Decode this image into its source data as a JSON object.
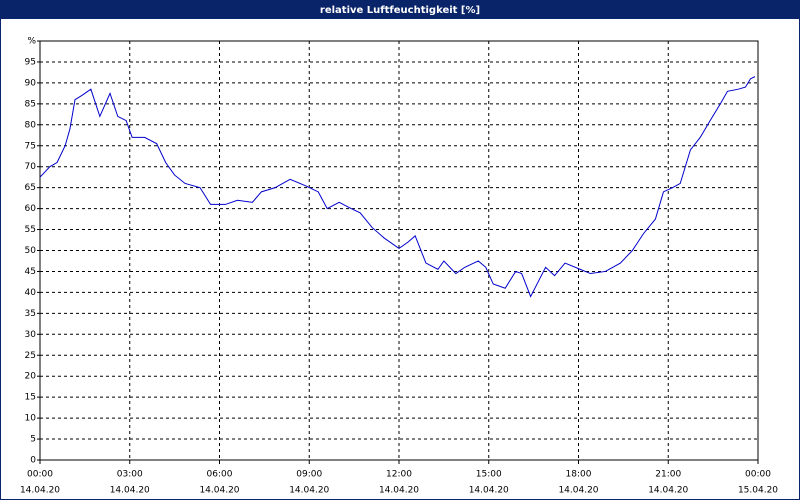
{
  "chart_data": {
    "type": "line",
    "title": "relative Luftfeuchtigkeit [%]",
    "x": [
      0,
      0.33,
      0.57,
      0.84,
      1.0,
      1.17,
      1.4,
      1.7,
      2.0,
      2.34,
      2.6,
      2.88,
      3.08,
      3.5,
      3.9,
      4.2,
      4.5,
      4.85,
      5.35,
      5.7,
      6.2,
      6.6,
      7.1,
      7.4,
      7.86,
      8.36,
      8.86,
      9.3,
      9.6,
      10.0,
      10.4,
      10.7,
      11.1,
      11.5,
      12.0,
      12.3,
      12.54,
      12.9,
      13.3,
      13.5,
      13.9,
      14.2,
      14.65,
      14.9,
      15.15,
      15.55,
      15.9,
      16.1,
      16.4,
      16.9,
      17.2,
      17.55,
      18.06,
      18.4,
      18.9,
      19.4,
      19.8,
      20.17,
      20.57,
      20.84,
      21.14,
      21.4,
      21.74,
      22.07,
      22.4,
      22.74,
      22.98,
      23.34,
      23.58,
      23.75,
      23.9
    ],
    "series": [
      {
        "color": "#0000cc",
        "values": [
          67.5,
          70,
          71,
          75,
          79,
          86,
          87,
          88.5,
          82,
          87.5,
          82,
          81,
          77,
          77,
          75.5,
          71,
          68,
          66,
          65,
          61,
          61,
          62,
          61.5,
          64,
          65,
          67,
          65.5,
          64,
          60,
          61.5,
          60,
          59,
          55.5,
          53,
          50.5,
          52,
          53.5,
          47,
          45.5,
          47.5,
          44.5,
          46,
          47.5,
          46,
          42,
          41,
          45,
          44.5,
          39,
          46,
          44,
          47,
          45.5,
          44.5,
          45,
          47,
          50,
          54,
          57.5,
          64,
          65,
          66,
          74,
          77,
          81,
          85,
          88,
          88.5,
          89,
          91,
          91.5
        ]
      }
    ],
    "xlim": [
      0,
      24
    ],
    "xticks": [
      {
        "value": 0,
        "label": "00:00",
        "date": "14.04.20"
      },
      {
        "value": 3,
        "label": "03:00",
        "date": "14.04.20"
      },
      {
        "value": 6,
        "label": "06:00",
        "date": "14.04.20"
      },
      {
        "value": 9,
        "label": "09:00",
        "date": "14.04.20"
      },
      {
        "value": 12,
        "label": "12:00",
        "date": "14.04.20"
      },
      {
        "value": 15,
        "label": "15:00",
        "date": "14.04.20"
      },
      {
        "value": 18,
        "label": "18:00",
        "date": "14.04.20"
      },
      {
        "value": 21,
        "label": "21:00",
        "date": "14.04.20"
      },
      {
        "value": 24,
        "label": "00:00",
        "date": "15.04.20"
      }
    ],
    "ylim": [
      0,
      100
    ],
    "yticks": [
      0,
      5,
      10,
      15,
      20,
      25,
      30,
      35,
      40,
      45,
      50,
      55,
      60,
      65,
      70,
      75,
      80,
      85,
      90,
      95,
      {
        "value": 100,
        "label": "%"
      }
    ],
    "grid": true
  }
}
